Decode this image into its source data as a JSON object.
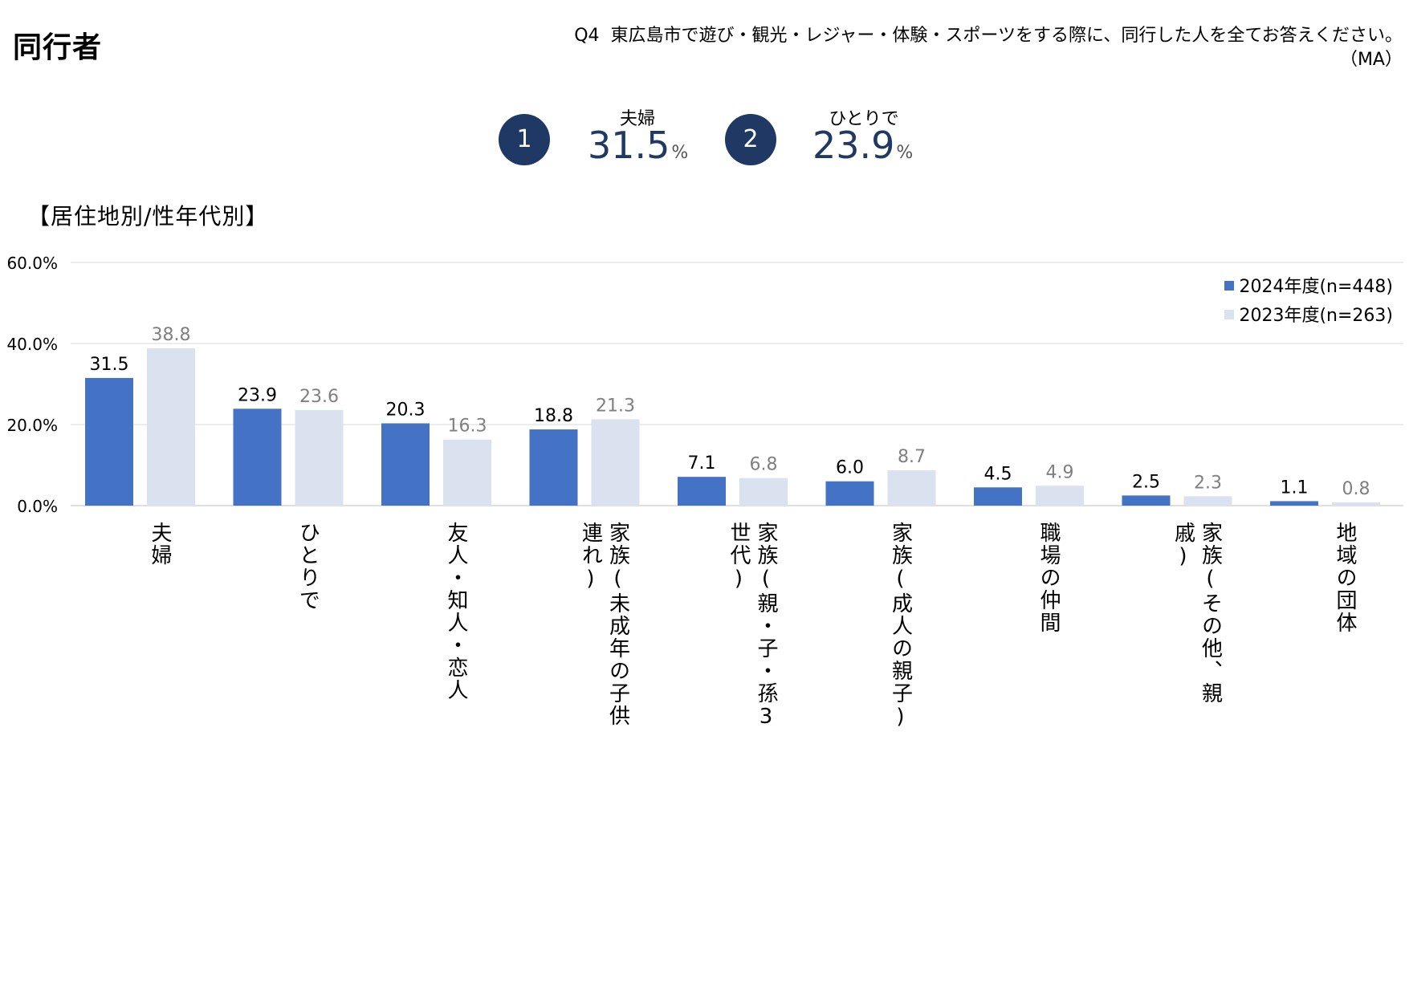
{
  "header": {
    "title": "同行者",
    "question_number": "Q4",
    "question_text": "東広島市で遊び・観光・レジャー・体験・スポーツをする際に、同行した人を全てお答えください。",
    "question_type": "（MA）"
  },
  "top_ranks": [
    {
      "rank": "1",
      "label": "夫婦",
      "value": "31.5",
      "unit": "%"
    },
    {
      "rank": "2",
      "label": "ひとりで",
      "value": "23.9",
      "unit": "%"
    }
  ],
  "section_heading": "【居住地別/性年代別】",
  "colors": {
    "series_2024": "#4472c4",
    "series_2023": "#dae1ef",
    "label_2023": "#808080",
    "accent": "#1f3864"
  },
  "chart_data": {
    "type": "bar",
    "categories": [
      "夫婦",
      "ひとりで",
      "友人・知人・恋人",
      "家族(未成年の子供連れ)",
      "家族(親・子・孫3世代)",
      "家族(成人の親子)",
      "職場の仲間",
      "家族(その他、親戚)",
      "地域の団体"
    ],
    "series": [
      {
        "name": "2024年度(n=448)",
        "values": [
          31.5,
          23.9,
          20.3,
          18.8,
          7.1,
          6.0,
          4.5,
          2.5,
          1.1
        ]
      },
      {
        "name": "2023年度(n=263)",
        "values": [
          38.8,
          23.6,
          16.3,
          21.3,
          6.8,
          8.7,
          4.9,
          2.3,
          0.8
        ]
      }
    ],
    "value_labels": [
      [
        "31.5",
        "23.9",
        "20.3",
        "18.8",
        "7.1",
        "6.0",
        "4.5",
        "2.5",
        "1.1"
      ],
      [
        "38.8",
        "23.6",
        "16.3",
        "21.3",
        "6.8",
        "8.7",
        "4.9",
        "2.3",
        "0.8"
      ]
    ],
    "y_ticks": [
      "0.0%",
      "20.0%",
      "40.0%",
      "60.0%"
    ],
    "ylim": [
      0,
      60
    ],
    "grid": true,
    "legend_position": "top-right"
  }
}
